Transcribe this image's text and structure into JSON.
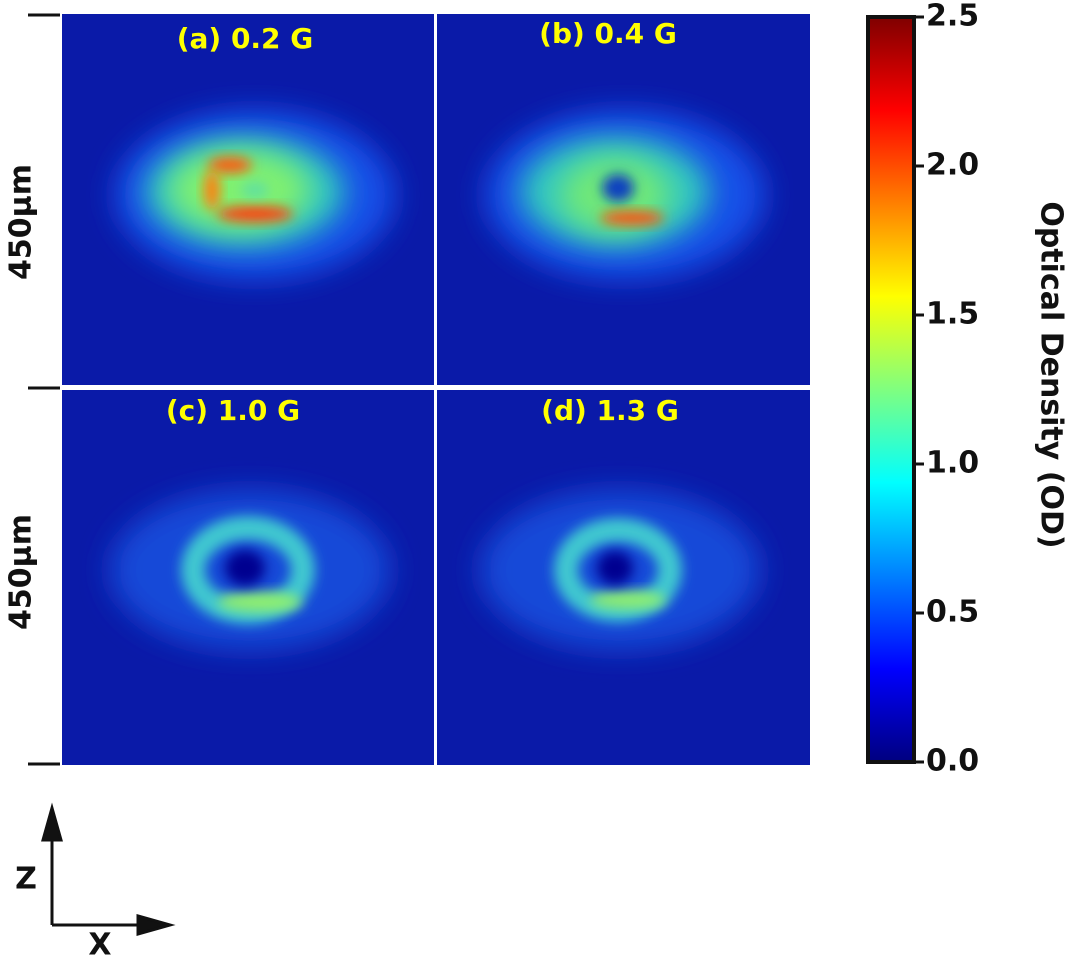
{
  "chart_data": {
    "type": "image",
    "panels": [
      {
        "title": "(a) 0.2 G"
      },
      {
        "title": "(b) 0.4 G"
      },
      {
        "title": "(c) 1.0 G"
      },
      {
        "title": "(d) 1.3 G"
      }
    ],
    "row_labels": [
      "450μm",
      "450μm"
    ],
    "colorbar": {
      "label": "Optical Density (OD)",
      "lim": [
        0,
        2.5
      ],
      "ticks": [
        {
          "value": 0,
          "label": "0.0"
        },
        {
          "value": 0.5,
          "label": "0.5"
        },
        {
          "value": 1,
          "label": "1.0"
        },
        {
          "value": 1.5,
          "label": "1.5"
        },
        {
          "value": 2,
          "label": "2.0"
        },
        {
          "value": 2.5,
          "label": "2.5"
        }
      ]
    },
    "axis_arrows": {
      "vertical": "Z",
      "horizontal": "X"
    }
  }
}
